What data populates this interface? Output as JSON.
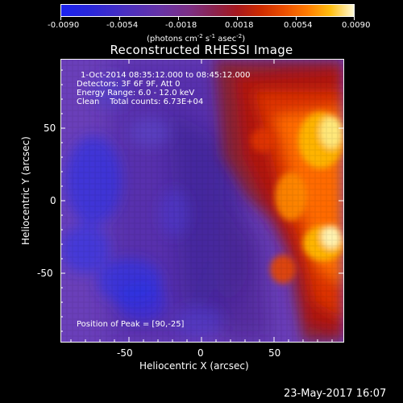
{
  "colorbar": {
    "ticks": [
      "-0.0090",
      "-0.0054",
      "-0.0018",
      "0.0018",
      "0.0054",
      "0.0090"
    ],
    "units": "(photons cm",
    "units_exp1": "-2",
    "units_mid": " s",
    "units_exp2": "-1",
    "units_end": " asec",
    "units_exp3": "-2",
    "units_close": ")"
  },
  "plot": {
    "title": "Reconstructed RHESSI Image",
    "info": {
      "time": "1-Oct-2014 08:35:12.000 to 08:45:12.000",
      "detectors": "Detectors: 3F 6F 9F, Att 0",
      "energy": "Energy Range: 6.0 - 12.0 keV",
      "clean": "Clean    Total counts: 6.73E+04"
    },
    "peak": "Position of Peak = [90,-25]",
    "xlabel": "Heliocentric X (arcsec)",
    "ylabel": "Heliocentric Y (arcsec)",
    "xticks": [
      "-50",
      "0",
      "50"
    ],
    "yticks": [
      "50",
      "0",
      "-50"
    ]
  },
  "timestamp": "23-May-2017 16:07",
  "colors": {
    "low": "#1b22f0",
    "mid": "#6a3fba",
    "high": "#ff7b00",
    "peak": "#fff9d6"
  }
}
